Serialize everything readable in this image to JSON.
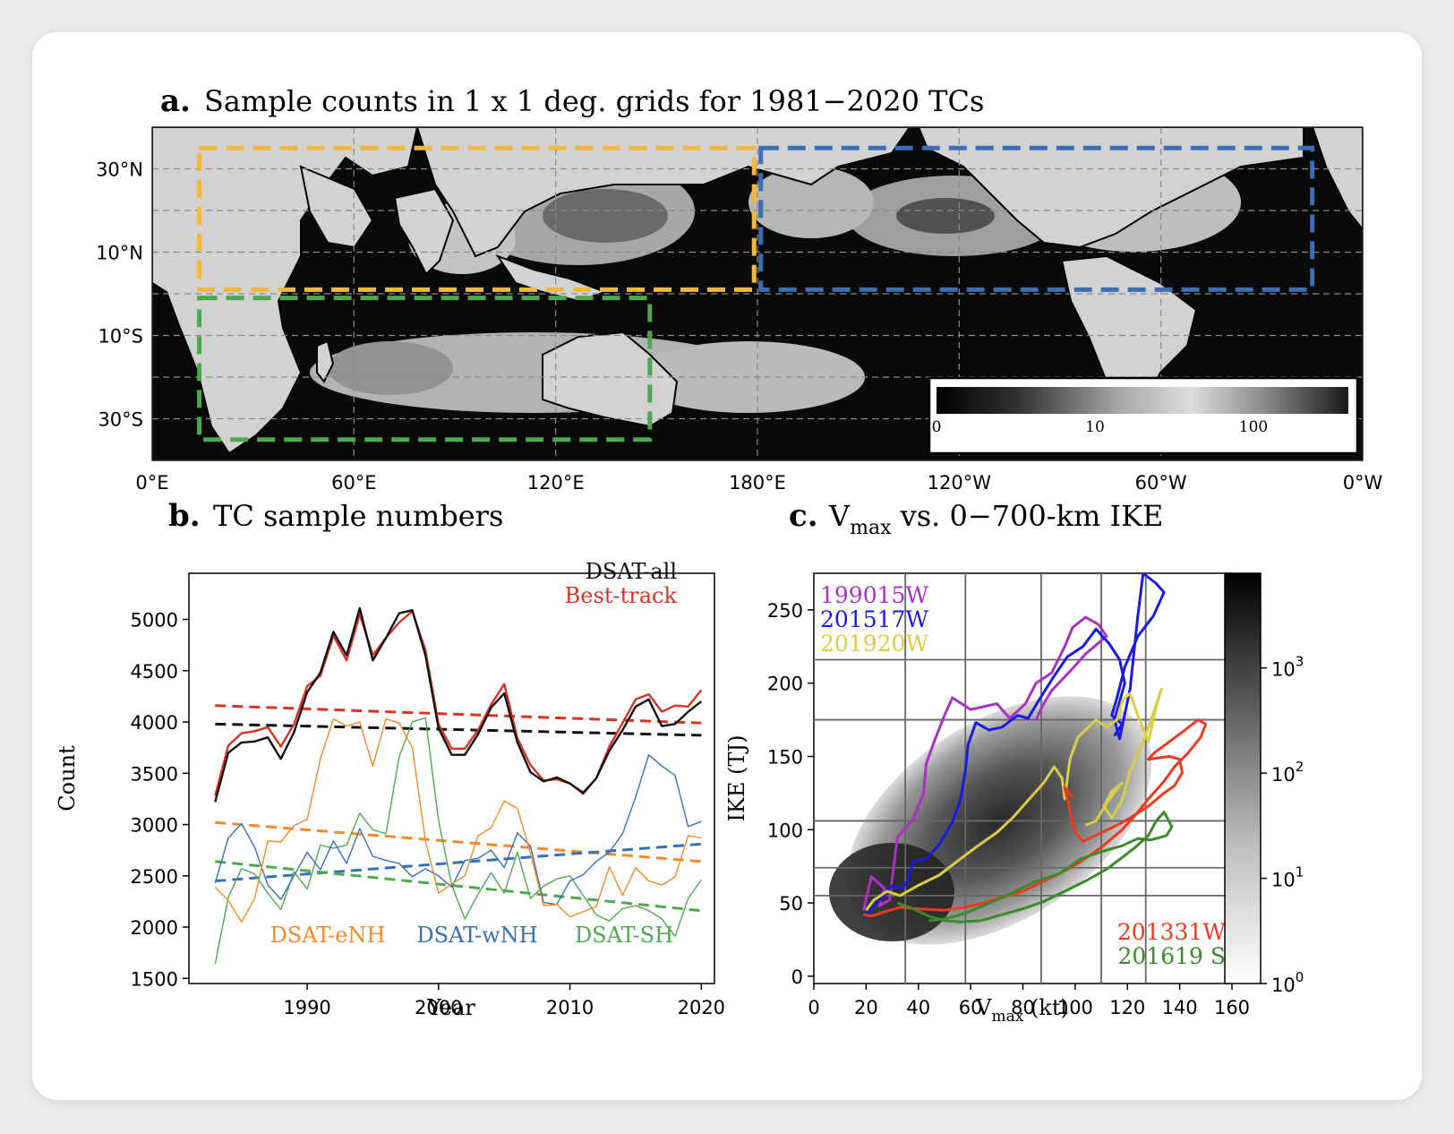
{
  "chart_data": [
    {
      "type": "heatmap",
      "panel_letter": "a.",
      "title": "Sample counts in 1 x 1 deg. grids for 1981−2020 TCs",
      "x_ticks": [
        "0°E",
        "60°E",
        "120°E",
        "180°E",
        "120°W",
        "60°W",
        "0°W"
      ],
      "y_ticks": [
        "30°N",
        "10°N",
        "10°S",
        "30°S"
      ],
      "colorbar_ticks": [
        "0",
        "10",
        "100"
      ],
      "colorbar_scale": "log",
      "regions": [
        {
          "key": "eNH",
          "color": "#f0b840",
          "lon": [
            14,
            179
          ],
          "lat": [
            1,
            35
          ]
        },
        {
          "key": "wNH",
          "color": "#3a6fb5",
          "lon": [
            181,
            345
          ],
          "lat": [
            1,
            35
          ]
        },
        {
          "key": "SH",
          "color": "#4fa84f",
          "lon": [
            14,
            148
          ],
          "lat": [
            -35,
            -1
          ]
        }
      ],
      "legend_position": "lower-right"
    },
    {
      "type": "line",
      "panel_letter": "b.",
      "title": "TC sample numbers",
      "xlabel": "Year",
      "ylabel": "Count",
      "xlim": [
        1981,
        2021
      ],
      "ylim": [
        1450,
        5450
      ],
      "x_ticks": [
        1990,
        2000,
        2010,
        2020
      ],
      "y_ticks": [
        1500,
        2000,
        2500,
        3000,
        3500,
        4000,
        4500,
        5000
      ],
      "legend_position": "top-right",
      "x": [
        1983,
        1984,
        1985,
        1986,
        1987,
        1988,
        1989,
        1990,
        1991,
        1992,
        1993,
        1994,
        1995,
        1996,
        1997,
        1998,
        1999,
        2000,
        2001,
        2002,
        2003,
        2004,
        2005,
        2006,
        2007,
        2008,
        2009,
        2010,
        2011,
        2012,
        2013,
        2014,
        2015,
        2016,
        2017,
        2018,
        2019,
        2020
      ],
      "series": [
        {
          "name": "DSAT-all",
          "color": "#111111",
          "width": 2.4,
          "trend": [
            3980,
            3870
          ],
          "values": [
            3220,
            3700,
            3800,
            3810,
            3850,
            3640,
            3900,
            4290,
            4480,
            4880,
            4650,
            5110,
            4600,
            4820,
            5060,
            5090,
            4650,
            3940,
            3680,
            3680,
            3880,
            4140,
            4280,
            3800,
            3510,
            3420,
            3460,
            3400,
            3310,
            3450,
            3720,
            3920,
            4150,
            4220,
            3960,
            3980,
            4100,
            4200
          ]
        },
        {
          "name": "Best-track",
          "color": "#d63328",
          "width": 2.4,
          "trend": [
            4160,
            3990
          ],
          "values": [
            3280,
            3770,
            3890,
            3910,
            3950,
            3760,
            3980,
            4350,
            4450,
            4840,
            4600,
            5050,
            4650,
            4820,
            4970,
            5080,
            4700,
            3980,
            3740,
            3740,
            3920,
            4170,
            4370,
            3840,
            3580,
            3430,
            3440,
            3400,
            3300,
            3450,
            3760,
            3990,
            4220,
            4270,
            4100,
            4160,
            4150,
            4310
          ]
        },
        {
          "name": "DSAT-eNH",
          "color": "#f08a2a",
          "width": 1.4,
          "trend": [
            3020,
            2640
          ],
          "values": [
            2390,
            2260,
            2050,
            2280,
            2840,
            2830,
            2990,
            3050,
            3640,
            4030,
            3960,
            4000,
            3570,
            4030,
            3990,
            3750,
            2840,
            2330,
            2420,
            2500,
            2890,
            2970,
            3230,
            3160,
            2720,
            2210,
            2220,
            2100,
            2150,
            2200,
            2590,
            2310,
            2580,
            2450,
            2410,
            2490,
            2890,
            2870
          ]
        },
        {
          "name": "DSAT-wNH",
          "color": "#3a6fb5",
          "width": 1.4,
          "trend": [
            2450,
            2810
          ],
          "values": [
            2430,
            2870,
            3010,
            2780,
            2410,
            2270,
            2500,
            2730,
            2560,
            2840,
            2620,
            2960,
            2690,
            2650,
            2620,
            2490,
            2570,
            2500,
            2390,
            2650,
            2670,
            2750,
            2580,
            2920,
            2790,
            2240,
            2220,
            2450,
            2510,
            2640,
            2730,
            2910,
            3270,
            3680,
            3570,
            3480,
            2980,
            3030
          ]
        },
        {
          "name": "DSAT-SH",
          "color": "#4fa84f",
          "width": 1.4,
          "trend": [
            2640,
            2160
          ],
          "values": [
            1640,
            2290,
            2570,
            2520,
            2330,
            2170,
            2540,
            2370,
            2800,
            2770,
            2800,
            3110,
            2950,
            2910,
            3660,
            4000,
            4040,
            3040,
            2410,
            2080,
            2320,
            2530,
            2330,
            2730,
            2280,
            2400,
            2470,
            2500,
            2310,
            2120,
            2060,
            2180,
            2210,
            2160,
            2080,
            1910,
            2280,
            2460
          ]
        }
      ]
    },
    {
      "type": "scatter",
      "panel_letter": "c.",
      "title_prefix": "V",
      "title_sub": "max",
      "title_suffix": " vs. 0−700-km IKE",
      "xlabel_prefix": "V",
      "xlabel_sub": "max",
      "xlabel_suffix": " (kt)",
      "ylabel": "IKE (TJ)",
      "xlim": [
        0,
        160
      ],
      "ylim": [
        -5,
        275
      ],
      "x_ticks": [
        0,
        20,
        40,
        60,
        80,
        100,
        120,
        140,
        160
      ],
      "y_ticks": [
        0,
        50,
        100,
        150,
        200,
        250
      ],
      "grid_x": [
        35,
        58,
        87,
        110,
        127
      ],
      "grid_y": [
        55,
        74,
        106,
        175,
        216
      ],
      "colorbar_scale": "log",
      "colorbar_ticks": [
        "10",
        "10",
        "10",
        "10"
      ],
      "colorbar_exponents": [
        "0",
        "1",
        "2",
        "3"
      ],
      "storms": [
        {
          "name": "199015W",
          "color": "#a833c0",
          "points": [
            [
              19,
              45
            ],
            [
              22,
              68
            ],
            [
              27,
              60
            ],
            [
              25,
              48
            ],
            [
              29,
              52
            ],
            [
              30,
              67
            ],
            [
              32,
              95
            ],
            [
              38,
              107
            ],
            [
              42,
              125
            ],
            [
              43,
              145
            ],
            [
              46,
              160
            ],
            [
              50,
              178
            ],
            [
              53,
              190
            ],
            [
              60,
              182
            ],
            [
              70,
              186
            ],
            [
              75,
              176
            ],
            [
              81,
              186
            ],
            [
              85,
              200
            ],
            [
              91,
              207
            ],
            [
              96,
              225
            ],
            [
              99,
              238
            ],
            [
              104,
              245
            ],
            [
              109,
              240
            ],
            [
              112,
              232
            ],
            [
              104,
              220
            ],
            [
              98,
              208
            ],
            [
              91,
              195
            ],
            [
              88,
              186
            ],
            [
              85,
              175
            ]
          ]
        },
        {
          "name": "201517W",
          "color": "#1a1ae0",
          "points": [
            [
              20,
              42
            ],
            [
              24,
              50
            ],
            [
              27,
              55
            ],
            [
              30,
              62
            ],
            [
              34,
              60
            ],
            [
              36,
              66
            ],
            [
              38,
              78
            ],
            [
              43,
              80
            ],
            [
              48,
              90
            ],
            [
              53,
              105
            ],
            [
              56,
              120
            ],
            [
              58,
              140
            ],
            [
              59,
              158
            ],
            [
              62,
              173
            ],
            [
              67,
              168
            ],
            [
              72,
              170
            ],
            [
              78,
              178
            ],
            [
              82,
              176
            ],
            [
              86,
              188
            ],
            [
              92,
              205
            ],
            [
              97,
              218
            ],
            [
              103,
              225
            ],
            [
              108,
              237
            ],
            [
              113,
              227
            ],
            [
              117,
              216
            ],
            [
              119,
              200
            ],
            [
              115,
              175
            ],
            [
              117,
              162
            ],
            [
              121,
              196
            ],
            [
              124,
              246
            ],
            [
              126,
              275
            ],
            [
              131,
              268
            ],
            [
              134,
              262
            ],
            [
              130,
              246
            ],
            [
              124,
              232
            ],
            [
              119,
              211
            ],
            [
              116,
              190
            ],
            [
              114,
              178
            ],
            [
              118,
              172
            ],
            [
              115,
              164
            ]
          ]
        },
        {
          "name": "201920W",
          "color": "#d8cd46",
          "points": [
            [
              20,
              45
            ],
            [
              23,
              52
            ],
            [
              28,
              58
            ],
            [
              33,
              55
            ],
            [
              40,
              62
            ],
            [
              48,
              69
            ],
            [
              56,
              80
            ],
            [
              62,
              88
            ],
            [
              70,
              98
            ],
            [
              76,
              108
            ],
            [
              81,
              118
            ],
            [
              88,
              132
            ],
            [
              92,
              143
            ],
            [
              95,
              135
            ],
            [
              96,
              121
            ],
            [
              98,
              148
            ],
            [
              101,
              163
            ],
            [
              108,
              175
            ],
            [
              112,
              170
            ],
            [
              116,
              175
            ],
            [
              118,
              188
            ],
            [
              121,
              193
            ],
            [
              124,
              178
            ],
            [
              128,
              160
            ],
            [
              131,
              184
            ],
            [
              133,
              196
            ],
            [
              130,
              180
            ],
            [
              126,
              160
            ],
            [
              121,
              140
            ],
            [
              118,
              120
            ],
            [
              114,
              108
            ],
            [
              111,
              116
            ],
            [
              114,
              126
            ],
            [
              118,
              132
            ],
            [
              112,
              118
            ],
            [
              108,
              106
            ],
            [
              104,
              103
            ]
          ]
        },
        {
          "name": "201331W",
          "color": "#ea3a22",
          "points": [
            [
              19,
              42
            ],
            [
              22,
              41
            ],
            [
              27,
              44
            ],
            [
              33,
              47
            ],
            [
              40,
              46
            ],
            [
              50,
              45
            ],
            [
              58,
              47
            ],
            [
              65,
              50
            ],
            [
              72,
              54
            ],
            [
              80,
              58
            ],
            [
              87,
              64
            ],
            [
              94,
              70
            ],
            [
              102,
              78
            ],
            [
              110,
              88
            ],
            [
              118,
              100
            ],
            [
              124,
              112
            ],
            [
              128,
              121
            ],
            [
              134,
              133
            ],
            [
              138,
              143
            ],
            [
              143,
              152
            ],
            [
              148,
              163
            ],
            [
              150,
              172
            ],
            [
              147,
              175
            ],
            [
              142,
              168
            ],
            [
              136,
              160
            ],
            [
              130,
              152
            ],
            [
              128,
              148
            ],
            [
              136,
              150
            ],
            [
              140,
              148
            ],
            [
              141,
              139
            ],
            [
              138,
              130
            ],
            [
              134,
              125
            ],
            [
              128,
              116
            ],
            [
              121,
              108
            ],
            [
              117,
              104
            ],
            [
              109,
              97
            ],
            [
              103,
              92
            ],
            [
              100,
              98
            ],
            [
              97,
              121
            ],
            [
              96,
              129
            ],
            [
              99,
              122
            ]
          ]
        },
        {
          "name": "201619 S",
          "color": "#3a8a2a",
          "points": [
            [
              32,
              50
            ],
            [
              38,
              46
            ],
            [
              44,
              41
            ],
            [
              50,
              38
            ],
            [
              56,
              37
            ],
            [
              64,
              38
            ],
            [
              72,
              42
            ],
            [
              80,
              46
            ],
            [
              88,
              51
            ],
            [
              96,
              58
            ],
            [
              104,
              65
            ],
            [
              112,
              73
            ],
            [
              118,
              81
            ],
            [
              123,
              88
            ],
            [
              128,
              96
            ],
            [
              131,
              106
            ],
            [
              134,
              112
            ],
            [
              137,
              102
            ],
            [
              135,
              96
            ],
            [
              129,
              93
            ],
            [
              124,
              94
            ],
            [
              118,
              89
            ],
            [
              110,
              85
            ],
            [
              102,
              80
            ],
            [
              94,
              70
            ],
            [
              84,
              64
            ],
            [
              75,
              56
            ],
            [
              66,
              49
            ],
            [
              58,
              43
            ],
            [
              50,
              39
            ],
            [
              44,
              38
            ]
          ]
        }
      ]
    }
  ]
}
